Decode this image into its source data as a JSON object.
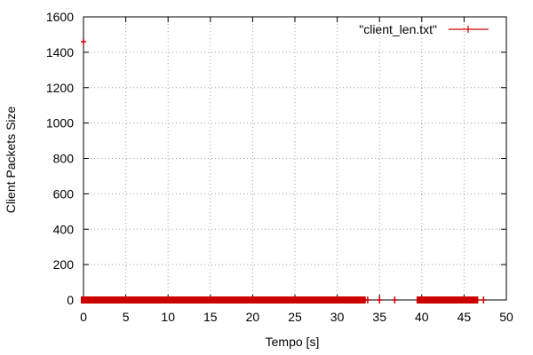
{
  "chart_data": {
    "type": "scatter",
    "xlabel": "Tempo [s]",
    "ylabel": "Client Packets Size",
    "xlim": [
      0,
      50
    ],
    "ylim": [
      0,
      1600
    ],
    "xticks": [
      "0",
      "5",
      "10",
      "15",
      "20",
      "25",
      "30",
      "35",
      "40",
      "45",
      "50"
    ],
    "yticks": [
      "0",
      "200",
      "400",
      "600",
      "800",
      "1000",
      "1200",
      "1400",
      "1600"
    ],
    "grid": true,
    "legend_position": "top-right",
    "series_color": "#cc0000",
    "series": [
      {
        "name": "\"client_len.txt\"",
        "marker": "plus",
        "segments": [
          [
            0.0,
            33.0
          ],
          [
            39.7,
            46.3
          ]
        ],
        "isolated_points": [
          {
            "x": 0.0,
            "y": 1460
          },
          {
            "x": 33.3,
            "y": 0
          },
          {
            "x": 33.6,
            "y": 0
          },
          {
            "x": 35.0,
            "y": 0
          },
          {
            "x": 36.8,
            "y": 0
          },
          {
            "x": 46.6,
            "y": 0
          },
          {
            "x": 47.3,
            "y": 0
          }
        ],
        "segments_y": 0
      }
    ]
  }
}
